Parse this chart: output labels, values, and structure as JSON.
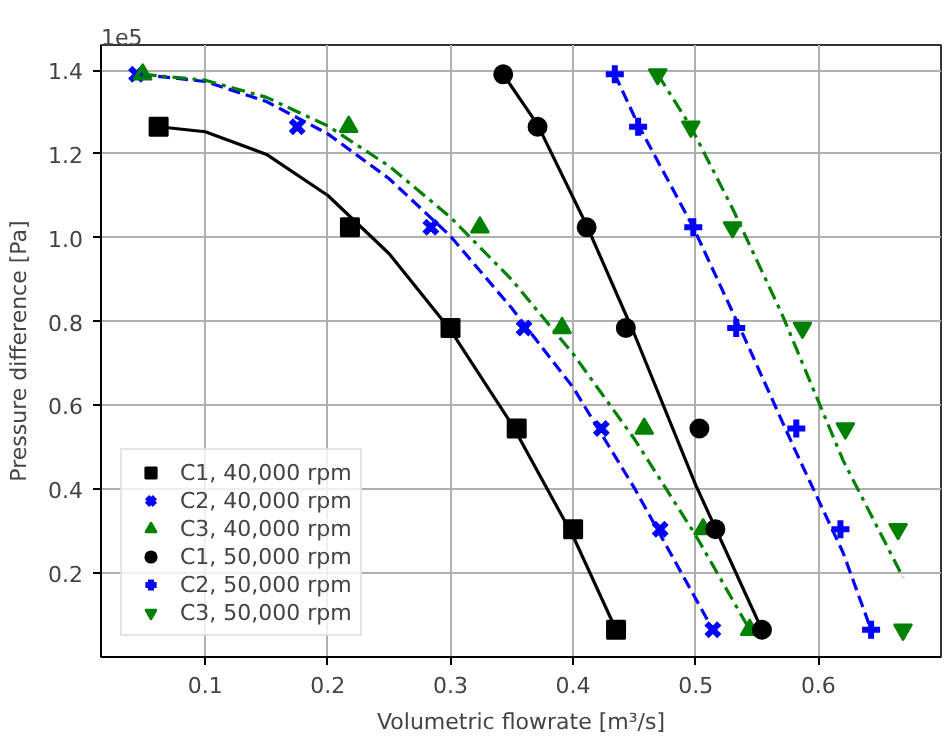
{
  "chart_data": {
    "type": "scatter",
    "xlabel": "Volumetric flowrate [m³/s]",
    "ylabel": "Pressure difference [Pa]",
    "annotations": [
      "1e5"
    ],
    "xlim": [
      0.015,
      0.7
    ],
    "ylim": [
      0,
      1.46
    ],
    "xticks": [
      0.1,
      0.2,
      0.3,
      0.4,
      0.5,
      0.6
    ],
    "yticks": [
      0.2,
      0.4,
      0.6,
      0.8,
      {
        "value": 1,
        "label": "1.0"
      },
      1.2,
      1.4
    ],
    "grid": true,
    "legend": "bottom left",
    "series": [
      {
        "name": "C1, 40,000 rpm",
        "color": "#000000",
        "marker": "square",
        "x": [
          0.062,
          0.218,
          0.3,
          0.354,
          0.4,
          0.435
        ],
        "values": [
          1.265,
          1.025,
          0.785,
          0.545,
          0.305,
          0.065
        ]
      },
      {
        "name": "C2, 40,000 rpm",
        "color": "#0000ff",
        "marker": "x",
        "x": [
          0.044,
          0.175,
          0.284,
          0.36,
          0.423,
          0.471,
          0.514
        ],
        "values": [
          1.39,
          1.265,
          1.025,
          0.785,
          0.545,
          0.305,
          0.065
        ]
      },
      {
        "name": "C3, 40,000 rpm",
        "color": "#008000",
        "marker": "triangle",
        "x": [
          0.049,
          0.217,
          0.324,
          0.391,
          0.458,
          0.506,
          0.544
        ],
        "values": [
          1.39,
          1.265,
          1.025,
          0.785,
          0.545,
          0.305,
          0.065
        ]
      },
      {
        "name": "C1, 50,000 rpm",
        "color": "#000000",
        "marker": "circle",
        "x": [
          0.343,
          0.371,
          0.411,
          0.443,
          0.503,
          0.516,
          0.554
        ],
        "values": [
          1.39,
          1.265,
          1.025,
          0.785,
          0.545,
          0.305,
          0.065
        ]
      },
      {
        "name": "C2, 50,000 rpm",
        "color": "#0000ff",
        "marker": "cross",
        "x": [
          0.434,
          0.453,
          0.498,
          0.533,
          0.582,
          0.618,
          0.643
        ],
        "values": [
          1.39,
          1.265,
          1.025,
          0.785,
          0.545,
          0.305,
          0.065
        ]
      },
      {
        "name": "C3, 50,000 rpm",
        "color": "#008000",
        "marker": "triangle_down",
        "x": [
          0.469,
          0.496,
          0.53,
          0.587,
          0.622,
          0.665,
          0.669
        ],
        "values": [
          1.39,
          1.265,
          1.025,
          0.785,
          0.545,
          0.305,
          0.065
        ]
      },
      {
        "type": "line",
        "color": "#000000",
        "line_style": "solid",
        "x": [
          0.062,
          0.1,
          0.15,
          0.2,
          0.25,
          0.3,
          0.35,
          0.4,
          0.435
        ],
        "values": [
          1.265,
          1.253,
          1.199,
          1.101,
          0.962,
          0.78,
          0.555,
          0.288,
          0.065
        ]
      },
      {
        "type": "line",
        "color": "#0000ff",
        "line_style": "dashed",
        "x": [
          0.047,
          0.1,
          0.15,
          0.2,
          0.25,
          0.3,
          0.35,
          0.4,
          0.45,
          0.514
        ],
        "values": [
          1.39,
          1.373,
          1.325,
          1.248,
          1.141,
          1.004,
          0.832,
          0.643,
          0.403,
          0.065
        ]
      },
      {
        "type": "line",
        "color": "#008000",
        "line_style": "dashdot",
        "x": [
          0.049,
          0.1,
          0.15,
          0.2,
          0.25,
          0.3,
          0.35,
          0.4,
          0.45,
          0.5,
          0.544
        ],
        "values": [
          1.39,
          1.376,
          1.335,
          1.267,
          1.171,
          1.049,
          0.9,
          0.723,
          0.52,
          0.29,
          0.065
        ]
      },
      {
        "type": "line",
        "color": "#000000",
        "line_style": "solid",
        "x": [
          0.343,
          0.371,
          0.411,
          0.45,
          0.5,
          0.554
        ],
        "values": [
          1.39,
          1.27,
          1.03,
          0.77,
          0.41,
          0.065
        ]
      },
      {
        "type": "line",
        "color": "#0000ff",
        "line_style": "dashed",
        "x": [
          0.434,
          0.453,
          0.498,
          0.54,
          0.58,
          0.62,
          0.643
        ],
        "values": [
          1.39,
          1.27,
          1.025,
          0.76,
          0.5,
          0.25,
          0.065
        ]
      },
      {
        "type": "line",
        "color": "#008000",
        "line_style": "dashdot",
        "x": [
          0.469,
          0.496,
          0.53,
          0.57,
          0.62,
          0.669
        ],
        "values": [
          1.39,
          1.265,
          1.07,
          0.82,
          0.47,
          0.19
        ]
      }
    ]
  }
}
